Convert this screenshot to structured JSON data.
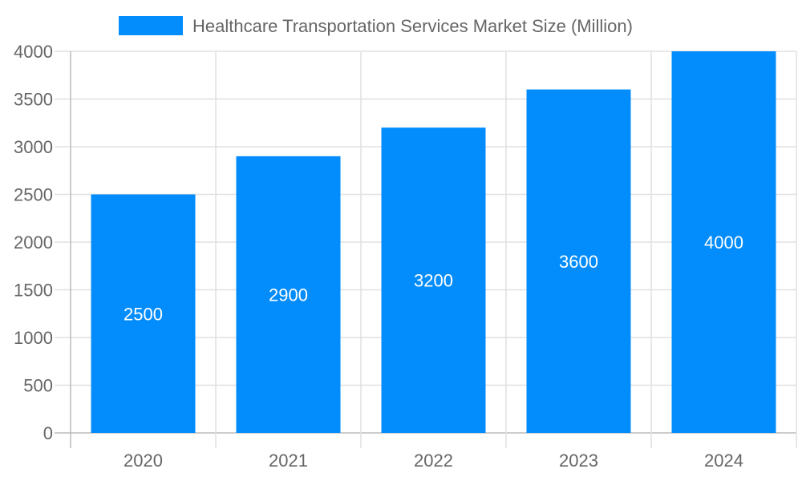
{
  "chart_data": {
    "type": "bar",
    "categories": [
      "2020",
      "2021",
      "2022",
      "2023",
      "2024"
    ],
    "series": [
      {
        "name": "Healthcare Transportation Services Market Size (Million)",
        "values": [
          2500,
          2900,
          3200,
          3600,
          4000
        ]
      }
    ],
    "yticks": [
      "0",
      "500",
      "1000",
      "1500",
      "2000",
      "2500",
      "3000",
      "3500",
      "4000"
    ],
    "ylim": [
      0,
      4000
    ],
    "grid": true,
    "legend_position": "top",
    "bar_color": "#038cfc",
    "data_label_color": "#ffffff",
    "text_color": "#666666"
  }
}
